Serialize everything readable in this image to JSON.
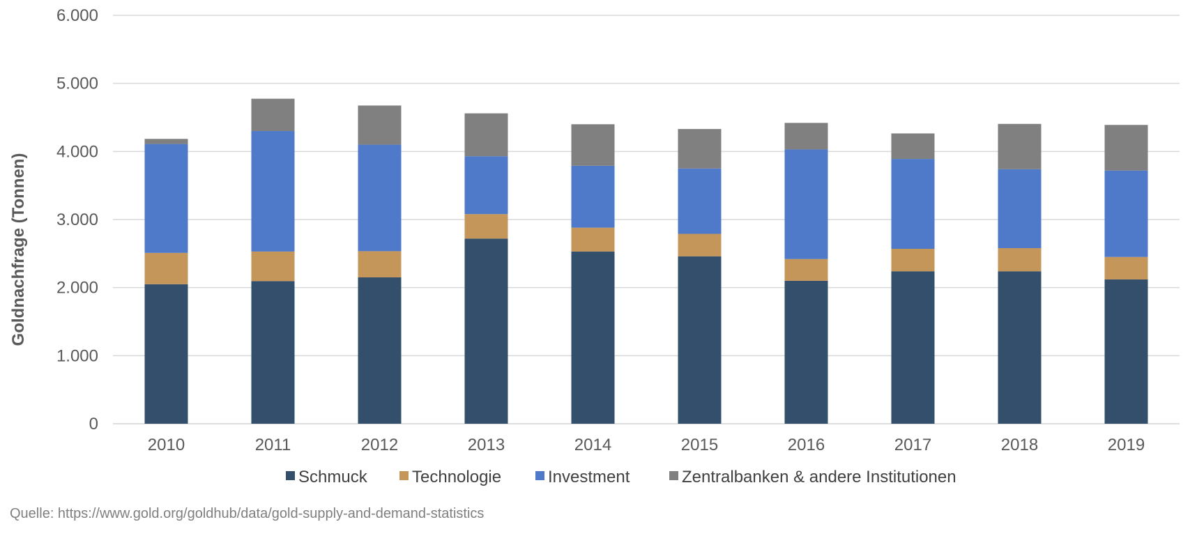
{
  "chart_data": {
    "type": "bar",
    "stacked": true,
    "categories": [
      "2010",
      "2011",
      "2012",
      "2013",
      "2014",
      "2015",
      "2016",
      "2017",
      "2018",
      "2019"
    ],
    "series": [
      {
        "name": "Schmuck",
        "color": "#334f6b",
        "values": [
          2050,
          2095,
          2150,
          2720,
          2530,
          2460,
          2100,
          2240,
          2240,
          2120
        ]
      },
      {
        "name": "Technologie",
        "color": "#c4965a",
        "values": [
          460,
          435,
          385,
          360,
          350,
          330,
          320,
          330,
          340,
          330
        ]
      },
      {
        "name": "Investment",
        "color": "#4f7ac9",
        "values": [
          1600,
          1770,
          1565,
          850,
          910,
          960,
          1610,
          1320,
          1160,
          1270
        ]
      },
      {
        "name": "Zentralbanken & andere Institutionen",
        "color": "#808080",
        "values": [
          75,
          475,
          575,
          630,
          610,
          580,
          390,
          375,
          665,
          670
        ]
      }
    ],
    "ylabel": "Goldnachfrage (Tonnen)",
    "xlabel": "",
    "ylim": [
      0,
      6000
    ],
    "yticks": [
      "0",
      "1.000",
      "2.000",
      "3.000",
      "4.000",
      "5.000",
      "6.000"
    ],
    "ytick_values": [
      0,
      1000,
      2000,
      3000,
      4000,
      5000,
      6000
    ],
    "grid": true,
    "legend_position": "bottom"
  },
  "source_text": "Quelle: https://www.gold.org/goldhub/data/gold-supply-and-demand-statistics"
}
